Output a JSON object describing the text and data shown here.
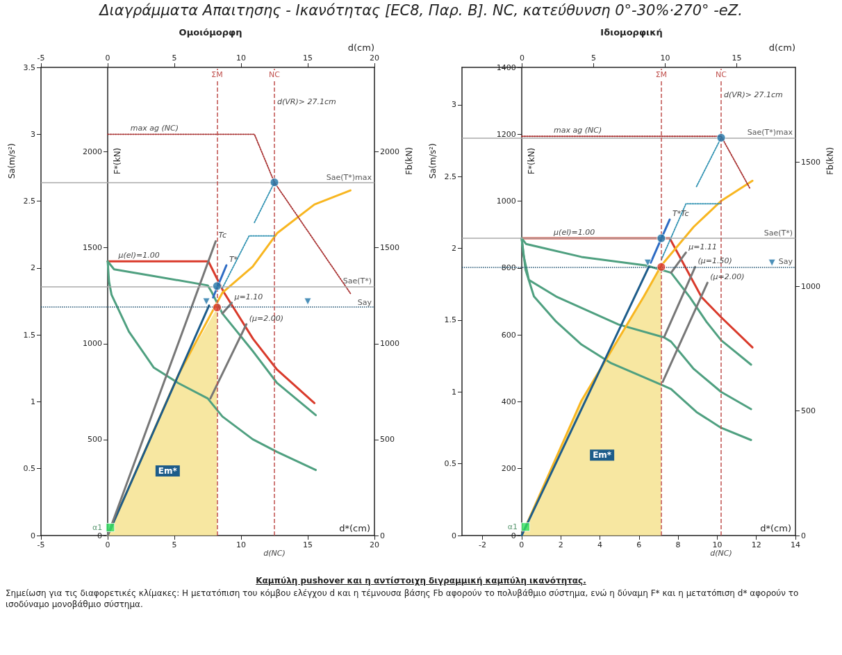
{
  "chart_data": [
    {
      "type": "other",
      "title": "Διαγράμματα Απαιτησης - Ικανότητας [EC8, Παρ. B]. NC, κατεύθυνση 0°-30%·270° -eZ."
    },
    {
      "type": "line",
      "title": "Ομοιόμορφη",
      "xlabel": "d*(cm)",
      "x2label": "d(cm)",
      "ylabel": "Sa(m/s²)",
      "y2label": "Fb(kN)",
      "y3label": "F*(kN)",
      "xlim": [
        -5,
        20
      ],
      "xticks": [
        -5,
        0,
        5,
        10,
        15,
        20
      ],
      "x2lim": [
        -5,
        20
      ],
      "x2ticks": [
        -5,
        0,
        5,
        10,
        15,
        20
      ],
      "ylim": [
        0,
        3.5
      ],
      "yticks": [
        0,
        0.5,
        1,
        1.5,
        2,
        2.5,
        3,
        3.5
      ],
      "y2lim": [
        0,
        2440
      ],
      "y2ticks": [
        0,
        500,
        1000,
        1500,
        2000
      ],
      "y3lim": [
        0,
        2440
      ],
      "y3ticks": [
        0,
        500,
        1000,
        1500,
        2000
      ],
      "marker": "none",
      "series": [
        {
          "type": "area",
          "name": "Em*",
          "color": "#f6e391",
          "x": [
            0,
            5.29,
            8.2
          ],
          "values": [
            0,
            1.2,
            1.7
          ]
        },
        {
          "type": "line",
          "color": "#d93a2b",
          "line_style": "solid",
          "x": [
            0,
            7.55,
            8.7,
            10.9,
            12.7,
            15.5
          ],
          "values": [
            2.05,
            2.05,
            1.82,
            1.47,
            1.24,
            0.99
          ]
        },
        {
          "type": "line",
          "color": "#4fa080",
          "line_style": "solid",
          "x": [
            0,
            0.48,
            3.46,
            7.5,
            7.8,
            8.6,
            10.87,
            12.7,
            15.6
          ],
          "values": [
            2.05,
            1.99,
            1.94,
            1.87,
            1.82,
            1.66,
            1.38,
            1.14,
            0.9
          ]
        },
        {
          "type": "line",
          "color": "#4fa080",
          "line_style": "solid",
          "x": [
            0,
            0.1,
            0.29,
            1.59,
            3.46,
            5.29,
            7.5,
            8.6,
            10.87,
            12.7,
            15.6
          ],
          "values": [
            2.05,
            1.9,
            1.8,
            1.525,
            1.255,
            1.14,
            1.025,
            0.89,
            0.72,
            0.625,
            0.49
          ]
        },
        {
          "type": "line",
          "color": "#f8b620",
          "line_style": "solid",
          "x": [
            0,
            5.29,
            8.6,
            10.87,
            12.7,
            15.5,
            18.2
          ],
          "values": [
            0,
            1.2,
            1.815,
            2.01,
            2.26,
            2.475,
            2.58
          ]
        },
        {
          "type": "line",
          "color": "#1d5c8a",
          "line_style": "solid",
          "x": [
            0,
            7.6
          ],
          "values": [
            0,
            1.72
          ]
        },
        {
          "type": "line",
          "color": "#2d6bc4",
          "line_style": "solid",
          "x": [
            7.9,
            8.9
          ],
          "values": [
            1.78,
            2.02
          ]
        },
        {
          "type": "line",
          "color": "#777777",
          "line_style": "solid",
          "x": [
            0,
            8.1
          ],
          "values": [
            0,
            2.2
          ]
        },
        {
          "type": "line",
          "color": "#777777",
          "line_style": "solid",
          "x": [
            7.7,
            10.4
          ],
          "values": [
            1.025,
            1.58
          ]
        },
        {
          "type": "line",
          "color": "#777777",
          "line_style": "solid",
          "x": [
            8.6,
            9.3
          ],
          "values": [
            1.66,
            1.74
          ]
        },
        {
          "type": "line",
          "color": "#a83030",
          "line_style": "dotted",
          "x": [
            0,
            11,
            12.5,
            18.2
          ],
          "values": [
            3,
            3,
            2.64,
            1.81
          ]
        },
        {
          "type": "line",
          "color": "#2a8fb0",
          "line_style": "dotted",
          "x": [
            8.6,
            10.6,
            12.5
          ],
          "values": [
            1.85,
            2.24,
            2.24
          ]
        },
        {
          "type": "line",
          "color": "#2a8fb0",
          "line_style": "dotted",
          "x": [
            11,
            12.5
          ],
          "values": [
            2.34,
            2.64
          ]
        },
        {
          "type": "scatter",
          "color": "#d93a2b",
          "marker": "circle",
          "x": [
            8.2
          ],
          "values": [
            1.705
          ]
        },
        {
          "type": "scatter",
          "color": "#1f74a8",
          "marker": "circle",
          "x": [
            8.2,
            12.5
          ],
          "values": [
            1.865,
            2.64
          ]
        },
        {
          "type": "scatter",
          "name": "α1",
          "color": "#2ee05f",
          "marker": "square",
          "x": [
            0.2
          ],
          "values": [
            0.06
          ]
        },
        {
          "type": "scatter",
          "color": "#1f74a8",
          "marker": "triangle",
          "x": [
            7.4,
            15
          ],
          "values": [
            1.75,
            1.75
          ]
        }
      ],
      "ref_lines": [
        {
          "axis": "y",
          "value": 1.705,
          "label": "Say",
          "color": "#1a4d6e",
          "line_style": "dotted"
        },
        {
          "axis": "y",
          "value": 1.865,
          "label": "Sae(T*)",
          "color": "#aaaaaa",
          "line_style": "solid"
        },
        {
          "axis": "y",
          "value": 2.64,
          "label": "Sae(T*)max",
          "color": "#aaaaaa",
          "line_style": "solid"
        },
        {
          "axis": "x",
          "value": 12.5,
          "label": "NC",
          "color": "#c0504d",
          "line_style": "dashed"
        },
        {
          "axis": "x",
          "value": 8.2,
          "label": "ΣM",
          "color": "#c0504d",
          "line_style": "dashed"
        }
      ],
      "annotations": [
        {
          "text": "d(VR)> 27.1cm",
          "x": 12.5,
          "y": 3.2
        },
        {
          "text": "max ag (NC)",
          "x": 1.5,
          "y": 3
        },
        {
          "text": "μ(el)=1.00",
          "x": 0.6,
          "y": 2.05
        },
        {
          "text": "μ=1.10",
          "x": 9.3,
          "y": 1.74
        },
        {
          "text": "(μ=2.00)",
          "x": 10.4,
          "y": 1.58
        },
        {
          "text": "Tc",
          "x": 8.1,
          "y": 2.2
        },
        {
          "text": "T*",
          "x": 8.9,
          "y": 2.02
        },
        {
          "text": "d(NC)",
          "x": 12.5,
          "y": 0
        }
      ]
    },
    {
      "type": "line",
      "title": "Ιδιομορφική",
      "xlabel": "d*(cm)",
      "x2label": "d(cm)",
      "ylabel": "Sa(m/s²)",
      "y2label": "Fb(kN)",
      "y3label": "F*(kN)",
      "xlim": [
        -3.05,
        14
      ],
      "xticks": [
        -2,
        0,
        2,
        4,
        6,
        8,
        10,
        12,
        14
      ],
      "x2lim": [
        -4.2,
        19.1
      ],
      "x2ticks": [
        0,
        5,
        10,
        15
      ],
      "ylim": [
        0,
        3.26
      ],
      "yticks": [
        0,
        0.5,
        1,
        1.5,
        2,
        2.5,
        3
      ],
      "y2lim": [
        0,
        1880
      ],
      "y2ticks": [
        0,
        500,
        1000,
        1500
      ],
      "y3lim": [
        0,
        1400
      ],
      "y3ticks": [
        0,
        200,
        400,
        600,
        800,
        1000,
        1200,
        1400
      ],
      "marker": "none",
      "series": [
        {
          "type": "area",
          "name": "Em*",
          "color": "#f6e391",
          "x": [
            0,
            3.06,
            6.25,
            7.14
          ],
          "values": [
            0,
            0.94,
            1.665,
            1.87
          ]
        },
        {
          "type": "line",
          "color": "#d93a2b",
          "line_style": "solid",
          "x": [
            0,
            7.57,
            9.2,
            10.2,
            11.8
          ],
          "values": [
            2.07,
            2.07,
            1.66,
            1.52,
            1.31
          ]
        },
        {
          "type": "line",
          "color": "#4fa080",
          "line_style": "solid",
          "x": [
            0,
            0.23,
            3.06,
            6.38,
            7.64,
            8.6,
            9.44,
            10.2,
            11.73
          ],
          "values": [
            2.07,
            2.03,
            1.94,
            1.88,
            1.83,
            1.66,
            1.49,
            1.36,
            1.19
          ]
        },
        {
          "type": "line",
          "color": "#4fa080",
          "line_style": "solid",
          "x": [
            0,
            0.1,
            0.37,
            1.76,
            4.95,
            7.28,
            7.64,
            8.8,
            10.2,
            11.73
          ],
          "values": [
            2.07,
            1.95,
            1.78,
            1.665,
            1.47,
            1.38,
            1.35,
            1.16,
            1,
            0.88
          ]
        },
        {
          "type": "line",
          "color": "#4fa080",
          "line_style": "solid",
          "x": [
            0,
            0.2,
            0.63,
            1.76,
            3.06,
            4.58,
            7.14,
            7.64,
            8.94,
            10.2,
            11.73
          ],
          "values": [
            2.07,
            1.85,
            1.665,
            1.49,
            1.33,
            1.2,
            1.05,
            1.02,
            0.86,
            0.75,
            0.665
          ]
        },
        {
          "type": "line",
          "color": "#f8b620",
          "line_style": "solid",
          "x": [
            0,
            3.06,
            6.25,
            7.14,
            8.8,
            10.2,
            11.8
          ],
          "values": [
            0,
            0.94,
            1.665,
            1.88,
            2.15,
            2.33,
            2.47
          ]
        },
        {
          "type": "line",
          "color": "#1d5c8a",
          "line_style": "solid",
          "x": [
            0,
            6.5
          ],
          "values": [
            0,
            1.87
          ]
        },
        {
          "type": "line",
          "color": "#2d6bc4",
          "line_style": "solid",
          "x": [
            6.6,
            7.57
          ],
          "values": [
            1.9,
            2.2
          ]
        },
        {
          "type": "line",
          "color": "#777777",
          "line_style": "solid",
          "x": [
            7.64,
            8.4
          ],
          "values": [
            1.83,
            1.97
          ]
        },
        {
          "type": "line",
          "color": "#777777",
          "line_style": "solid",
          "x": [
            7.28,
            8.87
          ],
          "values": [
            1.38,
            1.87
          ]
        },
        {
          "type": "line",
          "color": "#777777",
          "line_style": "solid",
          "x": [
            7.21,
            9.5
          ],
          "values": [
            1.07,
            1.76
          ]
        },
        {
          "type": "line",
          "color": "#a83030",
          "line_style": "dotted",
          "x": [
            0,
            10.2,
            11.66
          ],
          "values": [
            2.78,
            2.78,
            2.42
          ]
        },
        {
          "type": "line",
          "color": "#2a8fb0",
          "line_style": "dotted",
          "x": [
            8.94,
            10.2
          ],
          "values": [
            2.43,
            2.77
          ]
        },
        {
          "type": "line",
          "color": "#2a8fb0",
          "line_style": "dotted",
          "x": [
            7.14,
            8.4,
            10.2
          ],
          "values": [
            1.92,
            2.31,
            2.31
          ]
        },
        {
          "type": "scatter",
          "color": "#d93a2b",
          "marker": "circle",
          "x": [
            7.14
          ],
          "values": [
            1.87
          ]
        },
        {
          "type": "scatter",
          "color": "#1f74a8",
          "marker": "circle",
          "x": [
            7.14,
            10.2
          ],
          "values": [
            2.07,
            2.77
          ]
        },
        {
          "type": "scatter",
          "name": "α1",
          "color": "#2ee05f",
          "marker": "square",
          "x": [
            0.2
          ],
          "values": [
            0.06
          ]
        },
        {
          "type": "scatter",
          "color": "#1f74a8",
          "marker": "triangle",
          "x": [
            6.45,
            12.8
          ],
          "values": [
            1.9,
            1.9
          ]
        }
      ],
      "ref_lines": [
        {
          "axis": "y",
          "value": 1.87,
          "label": "Say",
          "color": "#1a4d6e",
          "line_style": "dotted"
        },
        {
          "axis": "y",
          "value": 2.07,
          "label": "Sae(T*)",
          "color": "#aaaaaa",
          "line_style": "solid"
        },
        {
          "axis": "y",
          "value": 2.77,
          "label": "Sae(T*)max",
          "color": "#aaaaaa",
          "line_style": "solid"
        },
        {
          "axis": "x",
          "value": 10.2,
          "label": "NC",
          "color": "#c0504d",
          "line_style": "dashed"
        },
        {
          "axis": "x",
          "value": 7.14,
          "label": "ΣM",
          "color": "#c0504d",
          "line_style": "dashed"
        }
      ],
      "annotations": [
        {
          "text": "d(VR)> 27.1cm",
          "x": 10.2,
          "y": 3.03
        },
        {
          "text": "max ag (NC)",
          "x": 1.5,
          "y": 2.78
        },
        {
          "text": "μ(el)=1.00",
          "x": 1.5,
          "y": 2.07
        },
        {
          "text": "T*Tc",
          "x": 7.57,
          "y": 2.2
        },
        {
          "text": "μ=1.11",
          "x": 8.4,
          "y": 1.97
        },
        {
          "text": "(μ=1.50)",
          "x": 8.87,
          "y": 1.87
        },
        {
          "text": "(μ=2.00)",
          "x": 9.5,
          "y": 1.76
        },
        {
          "text": "d(NC)",
          "x": 10.2,
          "y": 0
        }
      ]
    },
    {
      "type": "other",
      "title": "Καμπύλη pushover και η αντίστοιχη διγραμμική καμπύλη ικανότητας.",
      "annotations": [
        "Σημείωση για τις διαφορετικές κλίμακες: Η μετατόπιση του κόμβου ελέγχου d και η τέμνουσα βάσης Fb αφορούν το πολυβάθμιο σύστημα, ενώ η δύναμη F* και η μετατόπιση d* αφορούν το ισοδύναμο μονοβάθμιο σύστημα."
      ]
    }
  ]
}
